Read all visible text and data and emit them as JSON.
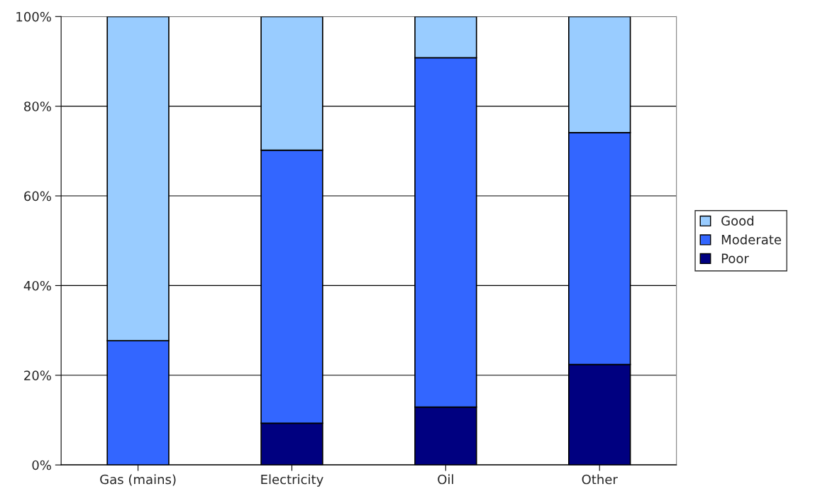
{
  "chart_data": {
    "type": "bar",
    "stacked": true,
    "categories": [
      "Gas (mains)",
      "Electricity",
      "Oil",
      "Other"
    ],
    "series": [
      {
        "name": "Poor",
        "color": "#000080",
        "values": [
          0,
          9.3,
          12.9,
          22.4
        ]
      },
      {
        "name": "Moderate",
        "color": "#3366ff",
        "values": [
          27.7,
          60.9,
          77.9,
          51.7
        ]
      },
      {
        "name": "Good",
        "color": "#99ccff",
        "values": [
          72.3,
          29.8,
          9.2,
          25.9
        ]
      }
    ],
    "ylim": [
      0,
      100
    ],
    "yticks": [
      {
        "value": 0,
        "label": "0%"
      },
      {
        "value": 20,
        "label": "20%"
      },
      {
        "value": 40,
        "label": "40%"
      },
      {
        "value": 60,
        "label": "60%"
      },
      {
        "value": 80,
        "label": "80%"
      },
      {
        "value": 100,
        "label": "100%"
      }
    ],
    "grid": "y",
    "legend": "right"
  }
}
